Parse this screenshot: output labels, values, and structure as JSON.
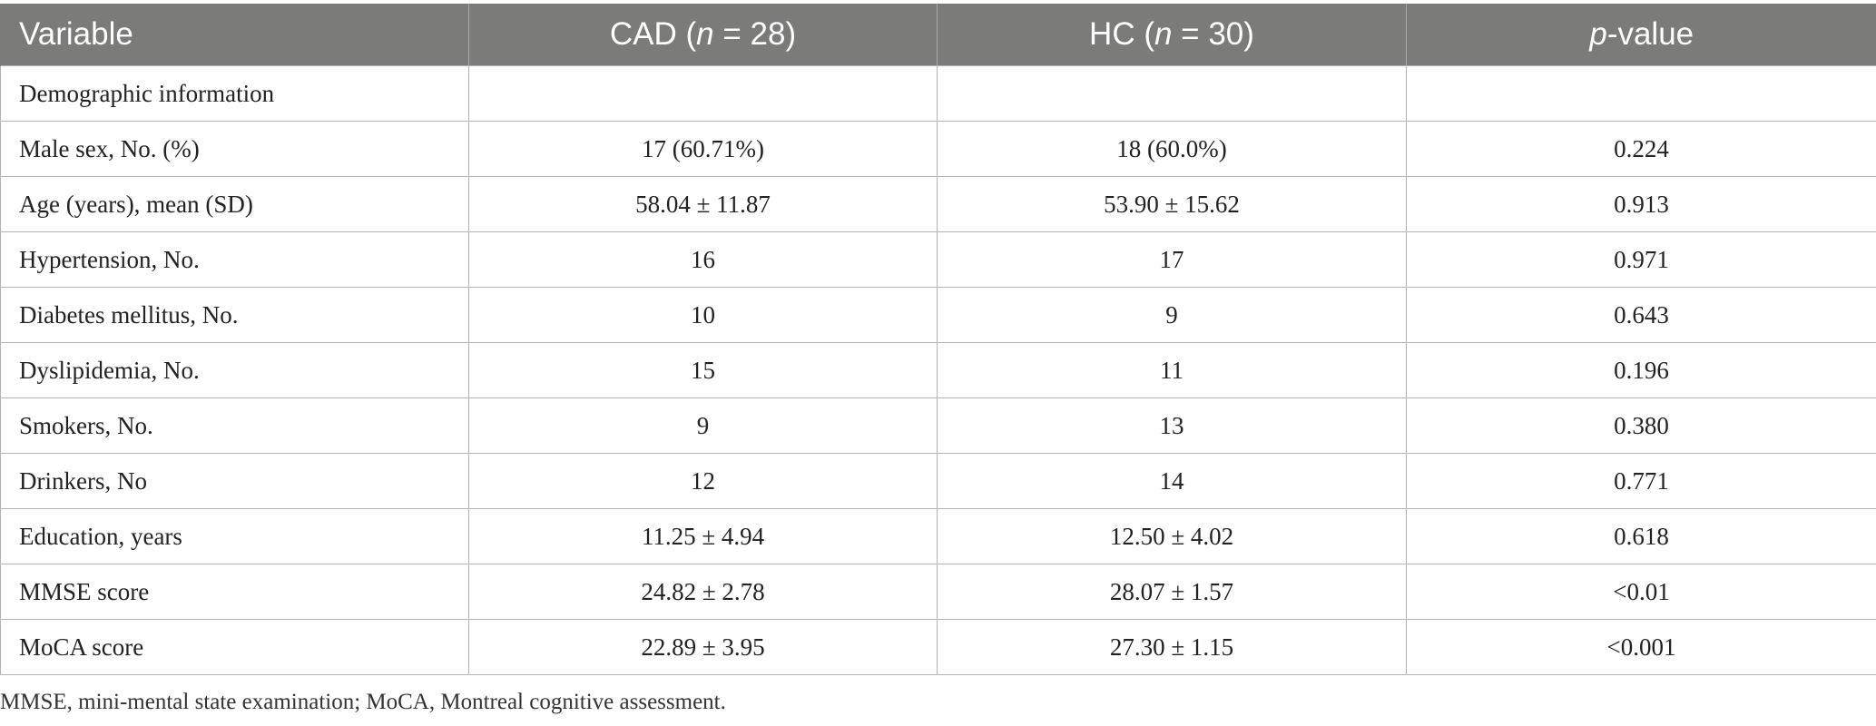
{
  "table": {
    "headers": {
      "variable": "Variable",
      "cad_pre": "CAD (",
      "cad_n": "n",
      "cad_post": " = 28)",
      "hc_pre": "HC (",
      "hc_n": "n",
      "hc_post": " = 30)",
      "p_italic": "p",
      "p_post": "-value"
    },
    "rows": [
      [
        "Demographic information",
        "",
        "",
        ""
      ],
      [
        "Male sex, No. (%)",
        "17 (60.71%)",
        "18 (60.0%)",
        "0.224"
      ],
      [
        "Age (years), mean (SD)",
        "58.04 ± 11.87",
        "53.90 ± 15.62",
        "0.913"
      ],
      [
        "Hypertension, No.",
        "16",
        "17",
        "0.971"
      ],
      [
        "Diabetes mellitus, No.",
        "10",
        "9",
        "0.643"
      ],
      [
        "Dyslipidemia, No.",
        "15",
        "11",
        "0.196"
      ],
      [
        "Smokers, No.",
        "9",
        "13",
        "0.380"
      ],
      [
        "Drinkers, No",
        "12",
        "14",
        "0.771"
      ],
      [
        "Education, years",
        "11.25 ± 4.94",
        "12.50 ± 4.02",
        "0.618"
      ],
      [
        "MMSE score",
        "24.82 ± 2.78",
        "28.07 ± 1.57",
        "<0.01"
      ],
      [
        "MoCA score",
        "22.89 ± 3.95",
        "27.30 ± 1.15",
        "<0.001"
      ]
    ]
  },
  "footnote": "MMSE, mini-mental state examination; MoCA, Montreal cognitive assessment."
}
